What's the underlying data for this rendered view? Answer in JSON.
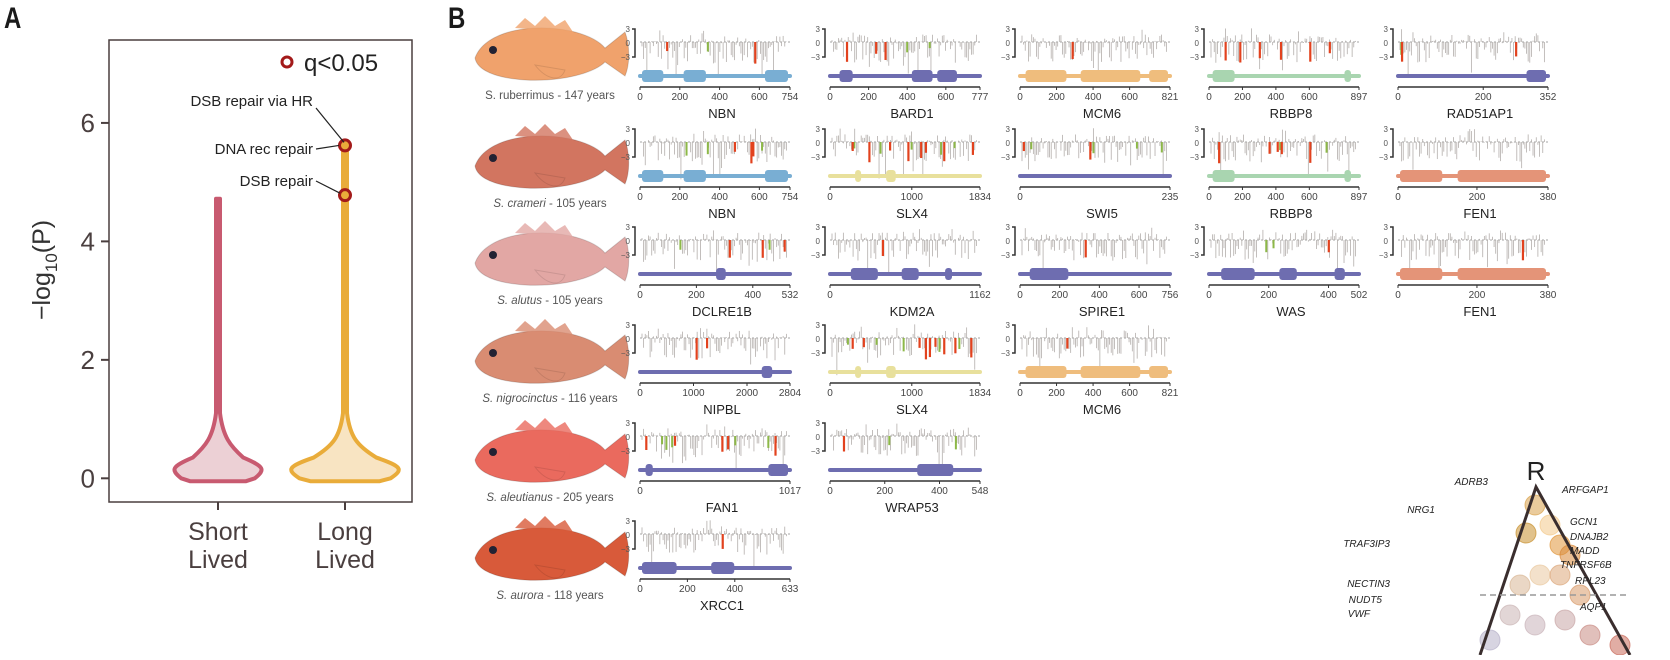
{
  "panel_labels": {
    "a": "A",
    "b": "B"
  },
  "chart_data": [
    {
      "type": "violin",
      "panel": "A",
      "title": "",
      "xlabel": "",
      "ylabel": "−log10(P)",
      "ylabel_parts": {
        "prefix": "−log",
        "sub": "10",
        "suffix": "(P)"
      },
      "ylim": [
        -0.4,
        7.4
      ],
      "yticks": [
        0,
        2,
        4,
        6
      ],
      "categories": [
        "Short\nLived",
        "Long\nLived"
      ],
      "category_lines": [
        [
          "Short",
          "Lived"
        ],
        [
          "Long",
          "Lived"
        ]
      ],
      "series": [
        {
          "name": "Short Lived",
          "color": "#c85a70",
          "fill": "#ecd0d5",
          "max": 4.72
        },
        {
          "name": "Long Lived",
          "color": "#e9ac3a",
          "fill": "#f8e4c2",
          "max": 5.62
        }
      ],
      "legend": {
        "label": "q<0.05",
        "marker_color": "#a31a1a",
        "position": "top-right"
      },
      "highlighted_points": [
        {
          "group": "Long Lived",
          "y": 5.62,
          "labels": [
            "DSB repair via HR",
            "DNA rec repair"
          ]
        },
        {
          "group": "Long Lived",
          "y": 4.78,
          "labels": [
            "DSB repair"
          ]
        }
      ],
      "annotations": [
        {
          "text": "DSB repair via HR",
          "y_text": 6.35,
          "target_y": 5.62
        },
        {
          "text": "DNA rec repair",
          "y_text": 5.65,
          "target_y": 5.62
        },
        {
          "text": "DSB repair",
          "y_text": 5.0,
          "target_y": 4.78
        }
      ]
    },
    {
      "type": "bar",
      "panel": "B",
      "description": "Per-residue substitution score tracks with protein domain schematics",
      "track_ylim": [
        -3,
        3
      ],
      "track_yticks": [
        "3",
        "0",
        "−3"
      ],
      "bar_colors": {
        "neutral": "#b3aeab",
        "deleterious": "#e2421e",
        "favorable": "#8db848"
      },
      "species": [
        {
          "name": "S. ruberrimus",
          "italic": false,
          "lifespan": "147 years",
          "color": "#f0a26c"
        },
        {
          "name": "S. crameri",
          "italic": true,
          "lifespan": "105 years",
          "color": "#d27560"
        },
        {
          "name": "S. alutus",
          "italic": true,
          "lifespan": "105 years",
          "color": "#e2a7a4"
        },
        {
          "name": "S. nigrocinctus",
          "italic": true,
          "lifespan": "116 years",
          "color": "#d98c72"
        },
        {
          "name": "S. aleutianus",
          "italic": true,
          "lifespan": "205 years",
          "color": "#ea6a5e"
        },
        {
          "name": "S. aurora",
          "italic": true,
          "lifespan": "118 years",
          "color": "#d85a3a"
        }
      ],
      "genes": [
        {
          "row": 0,
          "col": 0,
          "name": "NBN",
          "length": 754,
          "ticks": [
            0,
            200,
            400,
            600,
            754
          ],
          "color": "#79aed3",
          "domains": [
            [
              0,
              110
            ],
            [
              215,
              330
            ],
            [
              635,
              754
            ]
          ],
          "red": [
            130,
            585
          ],
          "green": [
            340
          ]
        },
        {
          "row": 0,
          "col": 1,
          "name": "BARD1",
          "length": 777,
          "ticks": [
            0,
            200,
            400,
            600,
            777
          ],
          "color": "#6e6db0",
          "domains": [
            [
              40,
              110
            ],
            [
              425,
              535
            ],
            [
              560,
              665
            ]
          ],
          "red": [
            80,
            235,
            285
          ],
          "green": [
            400,
            520
          ]
        },
        {
          "row": 0,
          "col": 2,
          "name": "MCM6",
          "length": 821,
          "ticks": [
            0,
            200,
            400,
            600,
            821
          ],
          "color": "#efbd7d",
          "domains": [
            [
              20,
              250
            ],
            [
              330,
              665
            ],
            [
              715,
              821
            ]
          ],
          "red": [
            285
          ],
          "green": []
        },
        {
          "row": 0,
          "col": 3,
          "name": "RBBP8",
          "length": 897,
          "ticks": [
            0,
            200,
            400,
            600,
            897
          ],
          "color": "#a9d5b0",
          "domains": [
            [
              10,
              145
            ],
            [
              820,
              860
            ]
          ],
          "red": [
            90,
            180,
            300,
            430,
            610,
            730
          ],
          "green": []
        },
        {
          "row": 0,
          "col": 4,
          "name": "RAD51AP1",
          "length": 352,
          "ticks": [
            0,
            200,
            352
          ],
          "color": "#6e6db0",
          "domains": [
            [
              305,
              352
            ]
          ],
          "red": [
            5,
            280
          ],
          "green": [
            3
          ]
        },
        {
          "row": 1,
          "col": 0,
          "name": "NBN",
          "length": 754,
          "ticks": [
            0,
            200,
            400,
            600,
            754
          ],
          "color": "#79aed3",
          "domains": [
            [
              0,
              110
            ],
            [
              215,
              330
            ],
            [
              635,
              754
            ]
          ],
          "red": [
            480,
            565,
            575
          ],
          "green": [
            230,
            340,
            620
          ]
        },
        {
          "row": 1,
          "col": 1,
          "name": "SLX4",
          "length": 1834,
          "ticks": [
            0,
            1000,
            1834
          ],
          "color": "#e8e09c",
          "domains": [
            [
              290,
              340
            ],
            [
              680,
              800
            ]
          ],
          "red": [
            260,
            470,
            730,
            960,
            1120,
            1180,
            1410,
            1770
          ],
          "green": [
            280,
            610,
            1000,
            1370,
            1540
          ]
        },
        {
          "row": 1,
          "col": 2,
          "name": "SWI5",
          "length": 235,
          "ticks": [
            0,
            235
          ],
          "color": "#6e6db0",
          "domains": [],
          "red": [
            3,
            110
          ],
          "green": [
            15,
            115,
            185,
            225
          ]
        },
        {
          "row": 1,
          "col": 3,
          "name": "RBBP8",
          "length": 897,
          "ticks": [
            0,
            200,
            400,
            600,
            897
          ],
          "color": "#a9d5b0",
          "domains": [
            [
              10,
              145
            ],
            [
              820,
              860
            ]
          ],
          "red": [
            50,
            360,
            410,
            435,
            610
          ],
          "green": [
            425,
            710
          ]
        },
        {
          "row": 1,
          "col": 4,
          "name": "FEN1",
          "length": 380,
          "ticks": [
            0,
            200,
            380
          ],
          "color": "#e49478",
          "domains": [
            [
              0,
              110
            ],
            [
              150,
              380
            ]
          ],
          "red": [],
          "green": []
        },
        {
          "row": 2,
          "col": 0,
          "name": "DCLRE1B",
          "length": 532,
          "ticks": [
            0,
            200,
            400,
            532
          ],
          "color": "#6e6db0",
          "domains": [
            [
              270,
              305
            ]
          ],
          "red": [
            320,
            440,
            520
          ],
          "green": [
            140,
            465
          ]
        },
        {
          "row": 2,
          "col": 1,
          "name": "KDM2A",
          "length": 1162,
          "ticks": [
            0,
            1162
          ],
          "color": "#6e6db0",
          "domains": [
            [
              150,
              365
            ],
            [
              555,
              690
            ],
            [
              900,
              955
            ]
          ],
          "red": [
            405
          ],
          "green": []
        },
        {
          "row": 2,
          "col": 2,
          "name": "SWI5",
          "display_name": "SPIRE1",
          "length": 756,
          "ticks": [
            0,
            200,
            400,
            600,
            756
          ],
          "color": "#6e6db0",
          "domains": [
            [
              40,
              240
            ]
          ],
          "red": [
            330
          ],
          "green": []
        },
        {
          "row": 2,
          "col": 3,
          "name": "WAS",
          "length": 502,
          "ticks": [
            0,
            200,
            400,
            502
          ],
          "color": "#6e6db0",
          "domains": [
            [
              35,
              150
            ],
            [
              235,
              295
            ],
            [
              425,
              460
            ]
          ],
          "red": [
            405
          ],
          "green": [
            190,
            215
          ]
        },
        {
          "row": 2,
          "col": 4,
          "name": "FEN1",
          "length": 380,
          "ticks": [
            0,
            200,
            380
          ],
          "color": "#e49478",
          "domains": [
            [
              0,
              110
            ],
            [
              150,
              380
            ]
          ],
          "red": [
            320
          ],
          "green": []
        },
        {
          "row": 3,
          "col": 0,
          "name": "NIPBL",
          "length": 2804,
          "ticks": [
            0,
            1000,
            2000,
            2804
          ],
          "color": "#6e6db0",
          "domains": [
            [
              2300,
              2500
            ]
          ],
          "red": [
            1050,
            1250
          ],
          "green": []
        },
        {
          "row": 3,
          "col": 1,
          "name": "SLX4",
          "length": 1834,
          "ticks": [
            0,
            1000,
            1834
          ],
          "color": "#e8e09c",
          "domains": [
            [
              290,
              340
            ],
            [
              680,
              800
            ]
          ],
          "red": [
            260,
            400,
            1100,
            1180,
            1230,
            1300,
            1410,
            1550,
            1750
          ],
          "green": [
            200,
            560,
            900,
            1350,
            1600
          ]
        },
        {
          "row": 3,
          "col": 2,
          "name": "MCM6",
          "length": 821,
          "ticks": [
            0,
            200,
            400,
            600,
            821
          ],
          "color": "#efbd7d",
          "domains": [
            [
              20,
              250
            ],
            [
              330,
              665
            ],
            [
              715,
              821
            ]
          ],
          "red": [
            255
          ],
          "green": []
        },
        {
          "row": 4,
          "col": 0,
          "name": "FAN1",
          "length": 1017,
          "ticks": [
            0,
            1017
          ],
          "color": "#6e6db0",
          "domains": [
            [
              25,
              75
            ],
            [
              880,
              1017
            ]
          ],
          "red": [
            30,
            230,
            560,
            600,
            930
          ],
          "green": [
            140,
            170,
            210,
            650,
            880
          ]
        },
        {
          "row": 4,
          "col": 1,
          "name": "WRAP53",
          "length": 548,
          "ticks": [
            0,
            200,
            400,
            548
          ],
          "color": "#6e6db0",
          "domains": [
            [
              320,
              455
            ]
          ],
          "red": [
            45
          ],
          "green": [
            215,
            465
          ]
        },
        {
          "row": 5,
          "col": 0,
          "name": "XRCC1",
          "length": 633,
          "ticks": [
            0,
            200,
            400,
            633
          ],
          "color": "#6e6db0",
          "domains": [
            [
              0,
              150
            ],
            [
              300,
              400
            ]
          ],
          "red": [
            350
          ],
          "green": []
        }
      ]
    },
    {
      "type": "scatter",
      "panel": "C (partial)",
      "title": "R",
      "description": "Ternary plot, partially visible",
      "labels": [
        "ADRB3",
        "ARFGAP1",
        "NRG1",
        "GCN1",
        "DNAJB2",
        "MADD",
        "TRAF3IP3",
        "TNFRSF6B",
        "RPL23",
        "NECTIN3",
        "NUDT5",
        "VWF",
        "AQP1"
      ]
    }
  ]
}
